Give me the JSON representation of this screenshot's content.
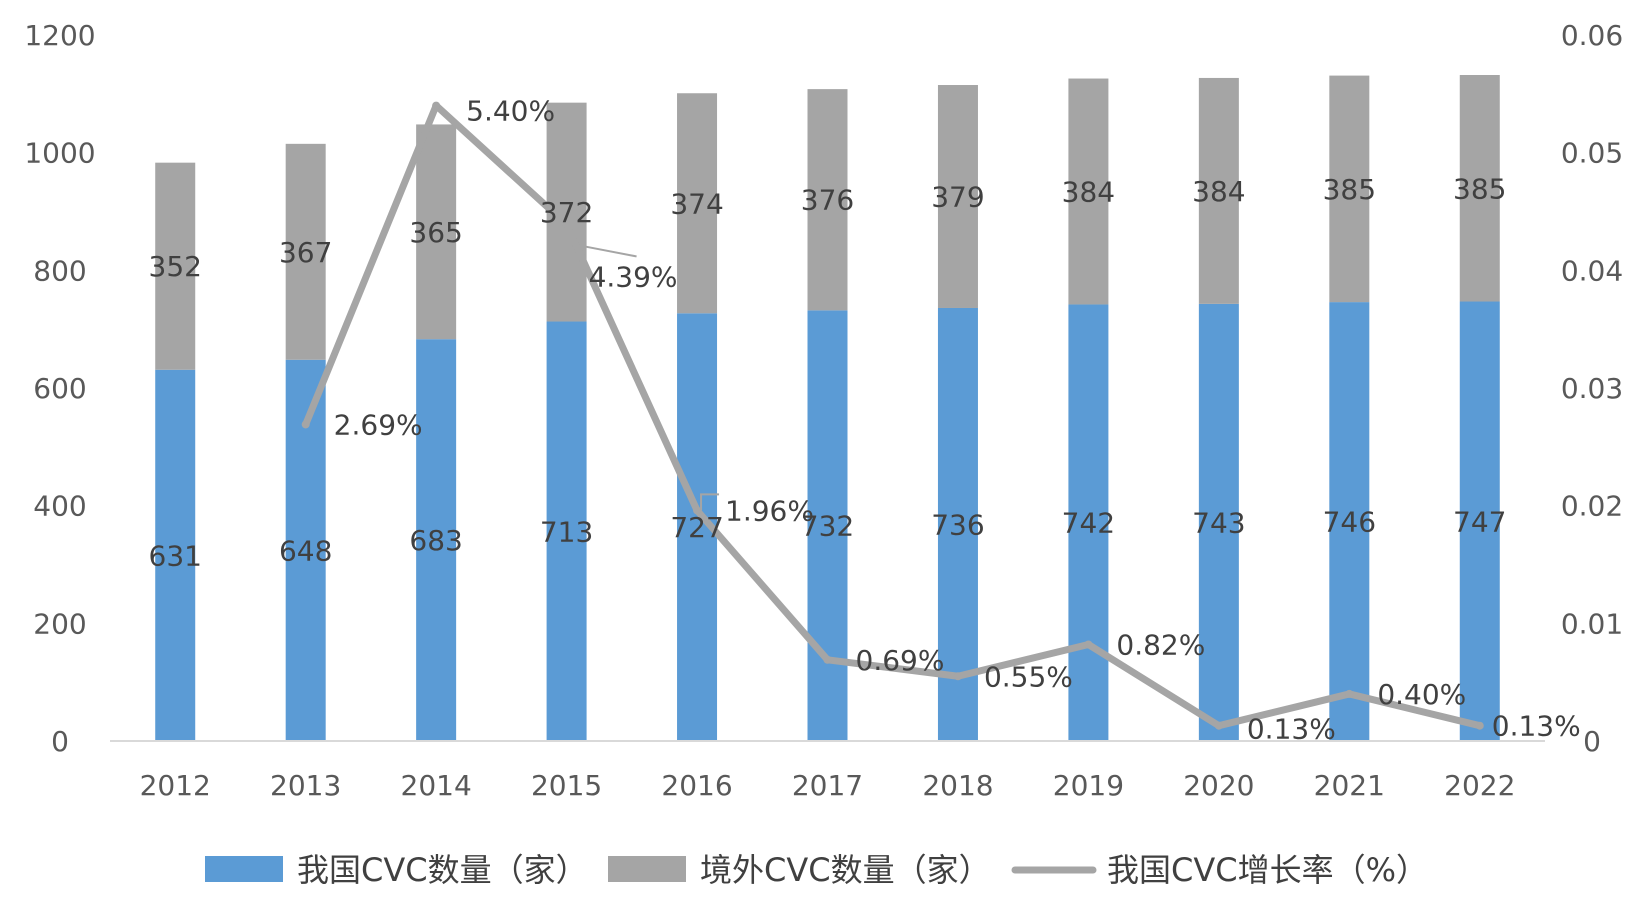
{
  "chart_data": {
    "type": "bar",
    "stacked": true,
    "categories": [
      "2012",
      "2013",
      "2014",
      "2015",
      "2016",
      "2017",
      "2018",
      "2019",
      "2020",
      "2021",
      "2022"
    ],
    "series": [
      {
        "name": "我国CVC数量（家）",
        "type": "bar",
        "axis": "left",
        "color": "#5B9BD5",
        "values": [
          631,
          648,
          683,
          713,
          727,
          732,
          736,
          742,
          743,
          746,
          747
        ]
      },
      {
        "name": "境外CVC数量（家）",
        "type": "bar",
        "axis": "left",
        "color": "#A5A5A5",
        "values": [
          352,
          367,
          365,
          372,
          374,
          376,
          379,
          384,
          384,
          385,
          385
        ]
      },
      {
        "name": "我国CVC增长率（%）",
        "type": "line",
        "axis": "right",
        "color": "#A5A5A5",
        "x": [
          "2013",
          "2014",
          "2015",
          "2016",
          "2017",
          "2018",
          "2019",
          "2020",
          "2021",
          "2022"
        ],
        "values": [
          0.0269,
          0.054,
          0.0439,
          0.0196,
          0.0069,
          0.0055,
          0.0082,
          0.0013,
          0.004,
          0.0013
        ],
        "labels": [
          "2.69%",
          "5.40%",
          "4.39%",
          "1.96%",
          "0.69%",
          "0.55%",
          "0.82%",
          "0.13%",
          "0.40%",
          "0.13%"
        ]
      }
    ],
    "y_left": {
      "ylim": [
        0,
        1200
      ],
      "ticks": [
        "0",
        "200",
        "400",
        "600",
        "800",
        "1000",
        "1200"
      ]
    },
    "y_right": {
      "ylim": [
        0,
        0.06
      ],
      "ticks": [
        "0",
        "0.01",
        "0.02",
        "0.03",
        "0.04",
        "0.05",
        "0.06"
      ]
    },
    "grid": false,
    "legend": "bottom"
  }
}
